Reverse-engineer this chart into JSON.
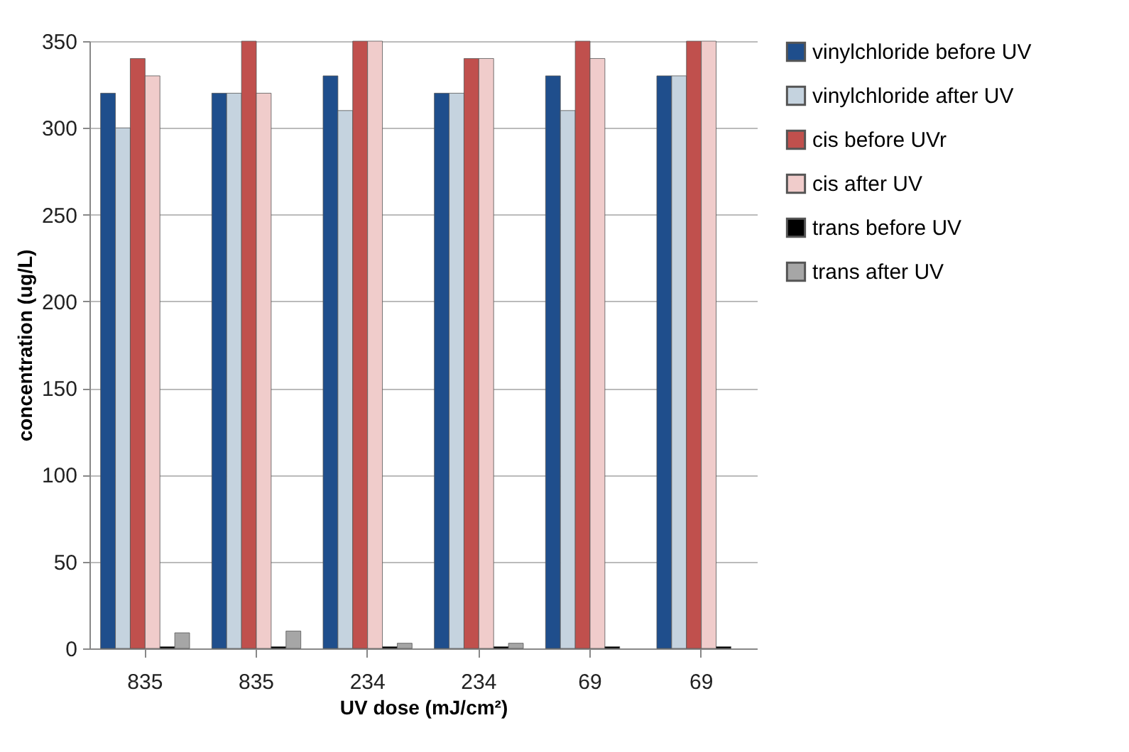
{
  "chart_data": {
    "type": "bar",
    "xlabel": "UV dose (mJ/cm²)",
    "ylabel": "concentration (ug/L)",
    "categories": [
      "835",
      "835",
      "234",
      "234",
      "69",
      "69"
    ],
    "series": [
      {
        "name": "vinylchloride before UV",
        "color": "#1f4e8c",
        "values": [
          320,
          320,
          330,
          320,
          330,
          330
        ]
      },
      {
        "name": "vinylchloride after UV",
        "color": "#c5d3df",
        "values": [
          300,
          320,
          310,
          320,
          310,
          330
        ]
      },
      {
        "name": "cis before UVr",
        "color": "#c0504d",
        "values": [
          340,
          350,
          350,
          340,
          350,
          350
        ]
      },
      {
        "name": "cis after UV",
        "color": "#f0cccb",
        "values": [
          330,
          320,
          350,
          340,
          340,
          350
        ]
      },
      {
        "name": "trans before UV",
        "color": "#000000",
        "values": [
          1,
          1,
          1,
          1,
          1,
          1
        ]
      },
      {
        "name": "trans after UV",
        "color": "#a6a6a6",
        "values": [
          9,
          10,
          3,
          3,
          null,
          null
        ]
      }
    ],
    "ylim": [
      0,
      350
    ],
    "yticks": [
      0,
      50,
      100,
      150,
      200,
      250,
      300,
      350
    ],
    "grid": "y",
    "legend": "right"
  }
}
